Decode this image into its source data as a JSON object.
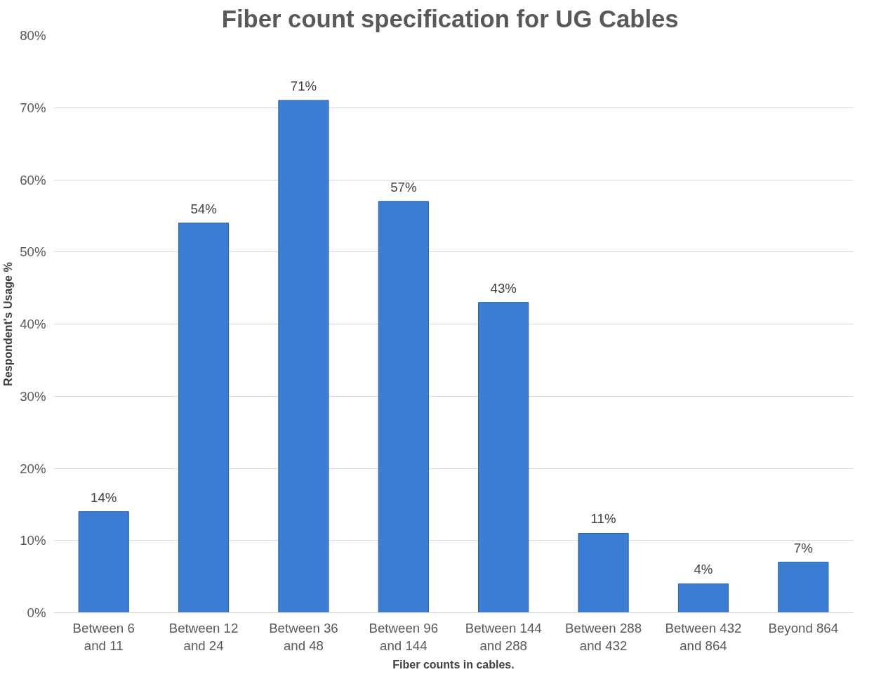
{
  "chart_data": {
    "type": "bar",
    "title": "Fiber count specification for UG  Cables",
    "xlabel": "Fiber counts in cables.",
    "ylabel": "Respondent's Usage %",
    "categories": [
      "Between 6\nand 11",
      "Between 12\nand 24",
      "Between 36\nand 48",
      "Between 96\nand 144",
      "Between 144\nand 288",
      "Between 288\nand 432",
      "Between 432\nand 864",
      "Beyond 864"
    ],
    "values": [
      14,
      54,
      71,
      57,
      43,
      11,
      4,
      7
    ],
    "value_labels": [
      "14%",
      "54%",
      "71%",
      "57%",
      "43%",
      "11%",
      "4%",
      "7%"
    ],
    "color": "#3c7dd4",
    "ylim": [
      0,
      80
    ],
    "yticks": [
      {
        "value": 0,
        "label": "0%"
      },
      {
        "value": 10,
        "label": "10%"
      },
      {
        "value": 20,
        "label": "20%"
      },
      {
        "value": 30,
        "label": "30%"
      },
      {
        "value": 40,
        "label": "40%"
      },
      {
        "value": 50,
        "label": "50%"
      },
      {
        "value": 60,
        "label": "60%"
      },
      {
        "value": 70,
        "label": "70%"
      },
      {
        "value": 80,
        "label": "80%"
      }
    ],
    "grid": "y"
  }
}
